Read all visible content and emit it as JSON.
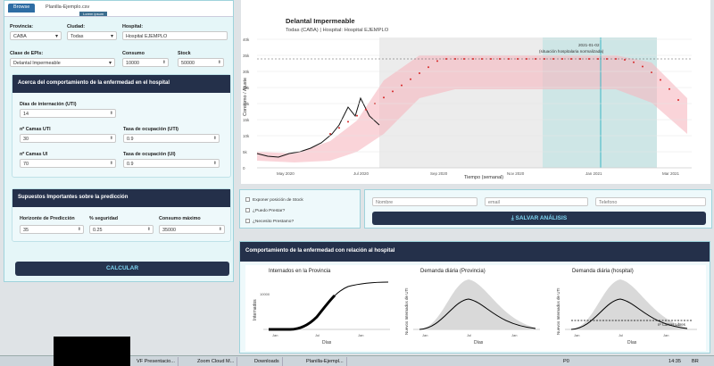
{
  "tabs": {
    "active": "Browse",
    "other": "Planilla-Ejemplo.csv",
    "hint": "Lorem ipsum"
  },
  "form": {
    "provincia_label": "Provincia:",
    "provincia_value": "CABA",
    "ciudad_label": "Ciudad:",
    "ciudad_value": "Todas",
    "hospital_label": "Hospital:",
    "hospital_value": "Hospital EJEMPLO",
    "clase_label": "Clase de EPIs:",
    "clase_value": "Delantal Impermeable",
    "consumo_label": "Consumo",
    "consumo_value": "10000",
    "stock_label": "Stock",
    "stock_value": "50000"
  },
  "panel1": {
    "title": "Acerca del comportamiento de la enfermedad en el hospital",
    "dias_label": "Días de internación (UTI)",
    "dias_value": "14",
    "camas_uti_label": "nº Camas UTI",
    "camas_uti_value": "30",
    "ocup_uti_label": "Tasa de ocupación (UTI)",
    "ocup_uti_value": "0.9",
    "camas_ui_label": "nº Camas UI",
    "camas_ui_value": "70",
    "ocup_ui_label": "Tasa de ocupación (UI)",
    "ocup_ui_value": "0.9"
  },
  "panel2": {
    "title": "Supuestos Importantes sobre la predicción",
    "horiz_label": "Horizonte de Predicción",
    "horiz_value": "35",
    "seg_label": "% seguridad",
    "seg_value": "0.25",
    "cmax_label": "Consumo máximo",
    "cmax_value": "35000"
  },
  "calcular": "CALCULAR",
  "main_chart": {
    "title": "Delantal Impermeable",
    "subtitle": "Todas (CABA) | Hospital: Hospital EJEMPLO",
    "ylabel": "Consumo / Ajuste",
    "xlabel": "Tiempo (semanal)",
    "annotation_date": "2021-01-02",
    "annotation_text": "(situación hospitalaria normalizada)",
    "yticks": [
      "0",
      "5k",
      "10k",
      "15k",
      "20k",
      "25k",
      "30k",
      "35k",
      "40k"
    ],
    "xticks": [
      "May 2020",
      "Jul 2020",
      "Sep 2020",
      "Nov 2020",
      "Jan 2021",
      "Mar 2021"
    ]
  },
  "checks": {
    "c1": "Exponer posición de Stock",
    "c2": "¿Puedo Prestar?",
    "c3": "¿Necesito Prestamo?"
  },
  "contact": {
    "nombre": "Nombre",
    "email": "email",
    "telefono": "Telefono",
    "save": "SALVAR ANÁLISIS"
  },
  "bottom": {
    "title": "Comportamiento de la enfermedad con relación al hospital",
    "p1_title": "Internados en la Provincia",
    "p1_ylabel": "Internados",
    "p1_ytick": "10000",
    "p1_xticks": [
      "Jan",
      "Jul",
      "Jan"
    ],
    "p2_title": "Demanda diária (Provincia)",
    "p2_ylabel": "Nuevos Internados de UTI",
    "p2_xticks": [
      "Jan",
      "Jul",
      "Jan"
    ],
    "p3_title": "Demanda diária (hospital)",
    "p3_ylabel": "Nuevos Internados de UTI",
    "p3_xticks": [
      "Jan",
      "Jul",
      "Jan"
    ],
    "p3_note": "nº Camas Libres",
    "xlabel": "Días"
  },
  "taskbar": {
    "t1": "VF Presentacio...",
    "t2": "Zoom Cloud M...",
    "t3": "Downloads",
    "t4": "Planilla-Ejempl...",
    "p0": "P0",
    "time": "14:35",
    "lang": "BR"
  },
  "chart_data": {
    "type": "line",
    "title": "Delantal Impermeable",
    "xlabel": "Tiempo (semanal)",
    "ylabel": "Consumo / Ajuste",
    "ylim": [
      0,
      40000
    ],
    "x": [
      "Apr 2020",
      "May 2020",
      "Jun 2020",
      "Jul 2020",
      "Aug 2020",
      "Sep 2020",
      "Oct 2020",
      "Nov 2020",
      "Dec 2020",
      "Jan 2021",
      "Feb 2021",
      "Mar 2021"
    ],
    "series": [
      {
        "values": [
          4000,
          3500,
          5000,
          9000,
          18000,
          null,
          null,
          null,
          null,
          null,
          null,
          null
        ]
      },
      {
        "values": [
          null,
          null,
          null,
          12000,
          20000,
          25000,
          25000,
          25000,
          25000,
          25000,
          20000,
          12000
        ]
      }
    ]
  }
}
